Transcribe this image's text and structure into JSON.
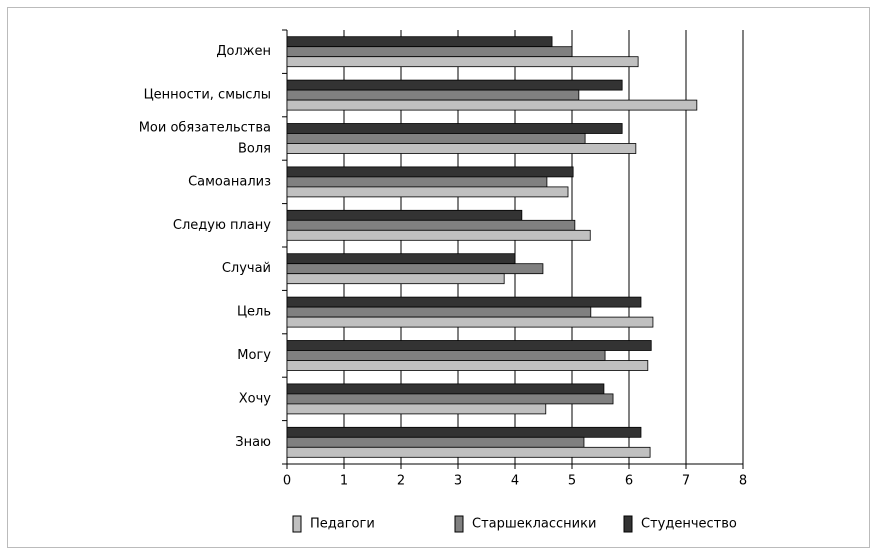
{
  "chart_data": {
    "type": "bar",
    "orientation": "horizontal",
    "categories": [
      "Должен",
      "Ценности, смыслы",
      [
        "Мои обязательства",
        "Воля"
      ],
      "Самоанализ",
      "Следую плану",
      "Случай",
      "Цель",
      "Могу",
      "Хочу",
      "Знаю"
    ],
    "series": [
      {
        "name": "Студенчество",
        "color": "#333333",
        "values": [
          4.65,
          5.88,
          5.88,
          5.02,
          4.12,
          4.0,
          6.21,
          6.39,
          5.56,
          6.21
        ]
      },
      {
        "name": "Старшеклассники",
        "color": "#808080",
        "values": [
          5.0,
          5.12,
          5.23,
          4.56,
          5.05,
          4.49,
          5.33,
          5.58,
          5.72,
          5.21
        ]
      },
      {
        "name": "Педагоги",
        "color": "#c0c0c0",
        "values": [
          6.16,
          7.19,
          6.12,
          4.93,
          5.32,
          3.81,
          6.42,
          6.33,
          4.54,
          6.37
        ]
      }
    ],
    "xlim": [
      0,
      8
    ],
    "xticks": [
      0,
      1,
      2,
      3,
      4,
      5,
      6,
      7,
      8
    ],
    "grid": true,
    "legend": "bottom"
  }
}
